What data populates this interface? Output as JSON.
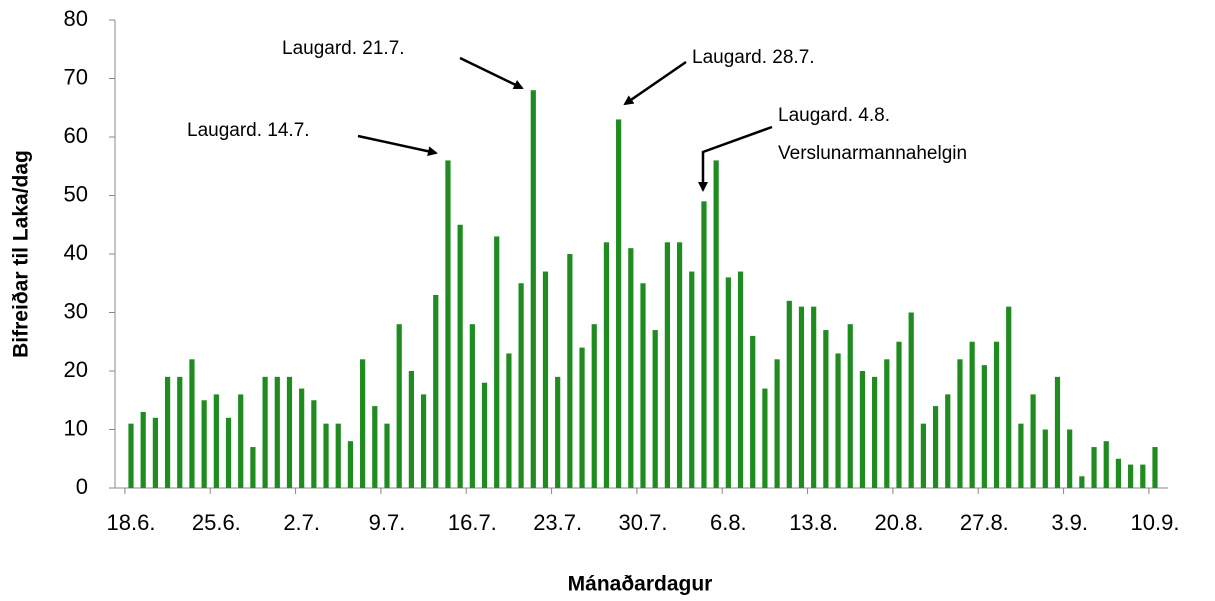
{
  "chart_data": {
    "type": "bar",
    "x_label": "Mánaðardagur",
    "y_label": "Bifreiðar til Laka/dag",
    "categories": [
      "18.6.",
      null,
      null,
      null,
      null,
      null,
      null,
      "25.6.",
      null,
      null,
      null,
      null,
      null,
      null,
      "2.7.",
      null,
      null,
      null,
      null,
      null,
      null,
      "9.7.",
      null,
      null,
      null,
      null,
      null,
      null,
      "16.7.",
      null,
      null,
      null,
      null,
      null,
      null,
      "23.7.",
      null,
      null,
      null,
      null,
      null,
      null,
      "30.7.",
      null,
      null,
      null,
      null,
      null,
      null,
      "6.8.",
      null,
      null,
      null,
      null,
      null,
      null,
      "13.8.",
      null,
      null,
      null,
      null,
      null,
      null,
      "20.8.",
      null,
      null,
      null,
      null,
      null,
      null,
      "27.8.",
      null,
      null,
      null,
      null,
      null,
      null,
      "3.9.",
      null,
      null,
      null,
      null,
      null,
      null,
      "10.9."
    ],
    "values": [
      11,
      13,
      12,
      19,
      19,
      22,
      15,
      16,
      12,
      16,
      7,
      19,
      19,
      19,
      17,
      15,
      11,
      11,
      8,
      22,
      14,
      11,
      28,
      20,
      16,
      33,
      56,
      45,
      28,
      18,
      43,
      23,
      35,
      68,
      37,
      19,
      40,
      24,
      28,
      42,
      63,
      41,
      35,
      27,
      42,
      42,
      37,
      49,
      56,
      36,
      37,
      26,
      17,
      22,
      32,
      31,
      31,
      27,
      23,
      28,
      20,
      19,
      22,
      25,
      30,
      11,
      14,
      16,
      22,
      25,
      21,
      25,
      31,
      11,
      16,
      10,
      19,
      10,
      2,
      7,
      8,
      5,
      4,
      4,
      7
    ],
    "color": "#1e8c1e",
    "ylim": [
      0,
      80
    ],
    "yticks": [
      0,
      10,
      20,
      30,
      40,
      50,
      60,
      70,
      80
    ],
    "grid": false,
    "annotations": [
      {
        "lines": [
          "Laugard. 14.7."
        ]
      },
      {
        "lines": [
          "Laugard. 21.7."
        ]
      },
      {
        "lines": [
          "Laugard. 28.7."
        ]
      },
      {
        "lines": [
          "Laugard. 4.8.",
          "Verslunarmannahelgin"
        ]
      }
    ]
  }
}
